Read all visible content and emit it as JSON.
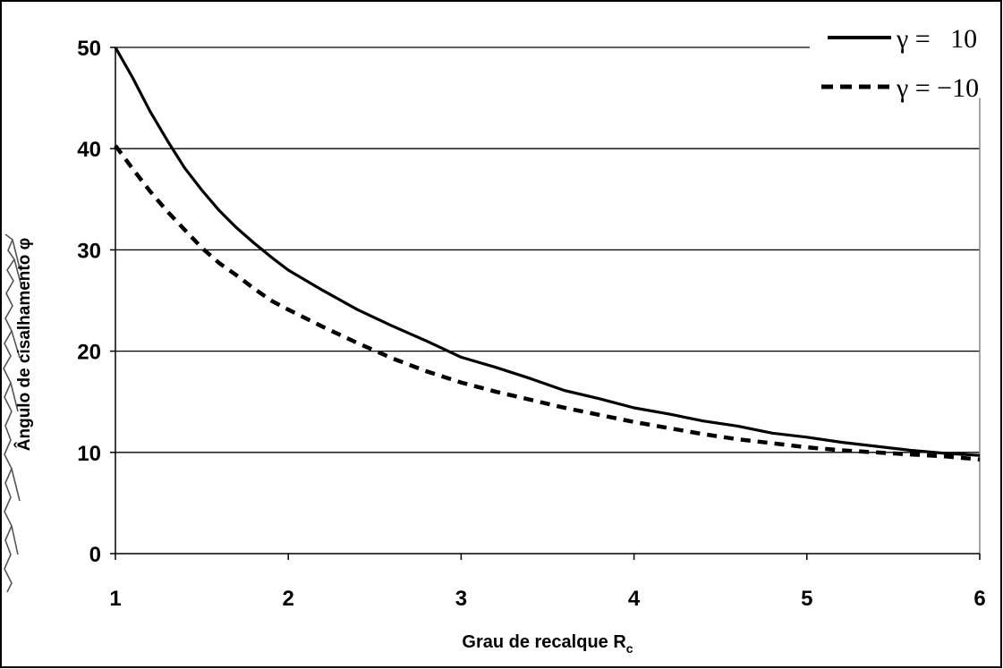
{
  "chart_data": {
    "type": "line",
    "title": "",
    "xlabel": "Grau de recalque R",
    "xlabel_sub": "c",
    "ylabel": "Ângulo de cisalhamento φ",
    "xlim": [
      1,
      6
    ],
    "ylim": [
      0,
      50
    ],
    "x_ticks": [
      "1",
      "2",
      "3",
      "4",
      "5",
      "6"
    ],
    "y_ticks": [
      "0",
      "10",
      "20",
      "30",
      "40",
      "50"
    ],
    "grid": "horizontal",
    "legend_position": "top-right",
    "series": [
      {
        "name": "γ =   10",
        "style": "solid",
        "color": "#000000",
        "x": [
          1.0,
          1.1,
          1.2,
          1.3,
          1.4,
          1.5,
          1.6,
          1.7,
          1.8,
          1.9,
          2.0,
          2.2,
          2.4,
          2.6,
          2.8,
          3.0,
          3.2,
          3.4,
          3.6,
          3.8,
          4.0,
          4.2,
          4.4,
          4.6,
          4.8,
          5.0,
          5.2,
          5.4,
          5.6,
          5.8,
          6.0
        ],
        "y": [
          50.0,
          47.0,
          43.7,
          40.8,
          38.1,
          35.9,
          33.9,
          32.2,
          30.7,
          29.3,
          28.0,
          26.0,
          24.1,
          22.5,
          21.0,
          19.4,
          18.4,
          17.3,
          16.1,
          15.3,
          14.4,
          13.8,
          13.1,
          12.6,
          11.9,
          11.5,
          11.0,
          10.6,
          10.2,
          9.9,
          9.7
        ]
      },
      {
        "name": "γ = −10",
        "style": "dashed",
        "color": "#000000",
        "x": [
          1.0,
          1.1,
          1.2,
          1.3,
          1.4,
          1.5,
          1.6,
          1.7,
          1.8,
          1.9,
          2.0,
          2.2,
          2.4,
          2.6,
          2.8,
          3.0,
          3.2,
          3.4,
          3.6,
          3.8,
          4.0,
          4.2,
          4.4,
          4.6,
          4.8,
          5.0,
          5.2,
          5.4,
          5.6,
          5.8,
          6.0
        ],
        "y": [
          40.3,
          38.0,
          35.8,
          33.8,
          32.0,
          30.2,
          28.7,
          27.5,
          26.2,
          25.0,
          24.1,
          22.4,
          20.8,
          19.3,
          18.0,
          16.9,
          16.0,
          15.2,
          14.4,
          13.7,
          13.0,
          12.4,
          11.8,
          11.3,
          10.9,
          10.5,
          10.2,
          10.0,
          9.8,
          9.6,
          9.3
        ]
      }
    ]
  }
}
